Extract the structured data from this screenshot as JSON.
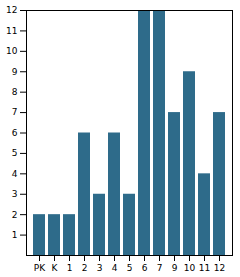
{
  "chart_data": {
    "type": "bar",
    "categories": [
      "PK",
      "K",
      "1",
      "2",
      "3",
      "4",
      "5",
      "6",
      "7",
      "9",
      "10",
      "11",
      "12"
    ],
    "values": [
      2,
      2,
      2,
      6,
      3,
      6,
      3,
      12,
      12,
      7,
      9,
      4,
      7
    ],
    "color": "#2e6b8a",
    "ylim": [
      0,
      12
    ],
    "yticks": [
      1,
      2,
      3,
      4,
      5,
      6,
      7,
      8,
      9,
      10,
      11,
      12
    ],
    "grid": false
  }
}
